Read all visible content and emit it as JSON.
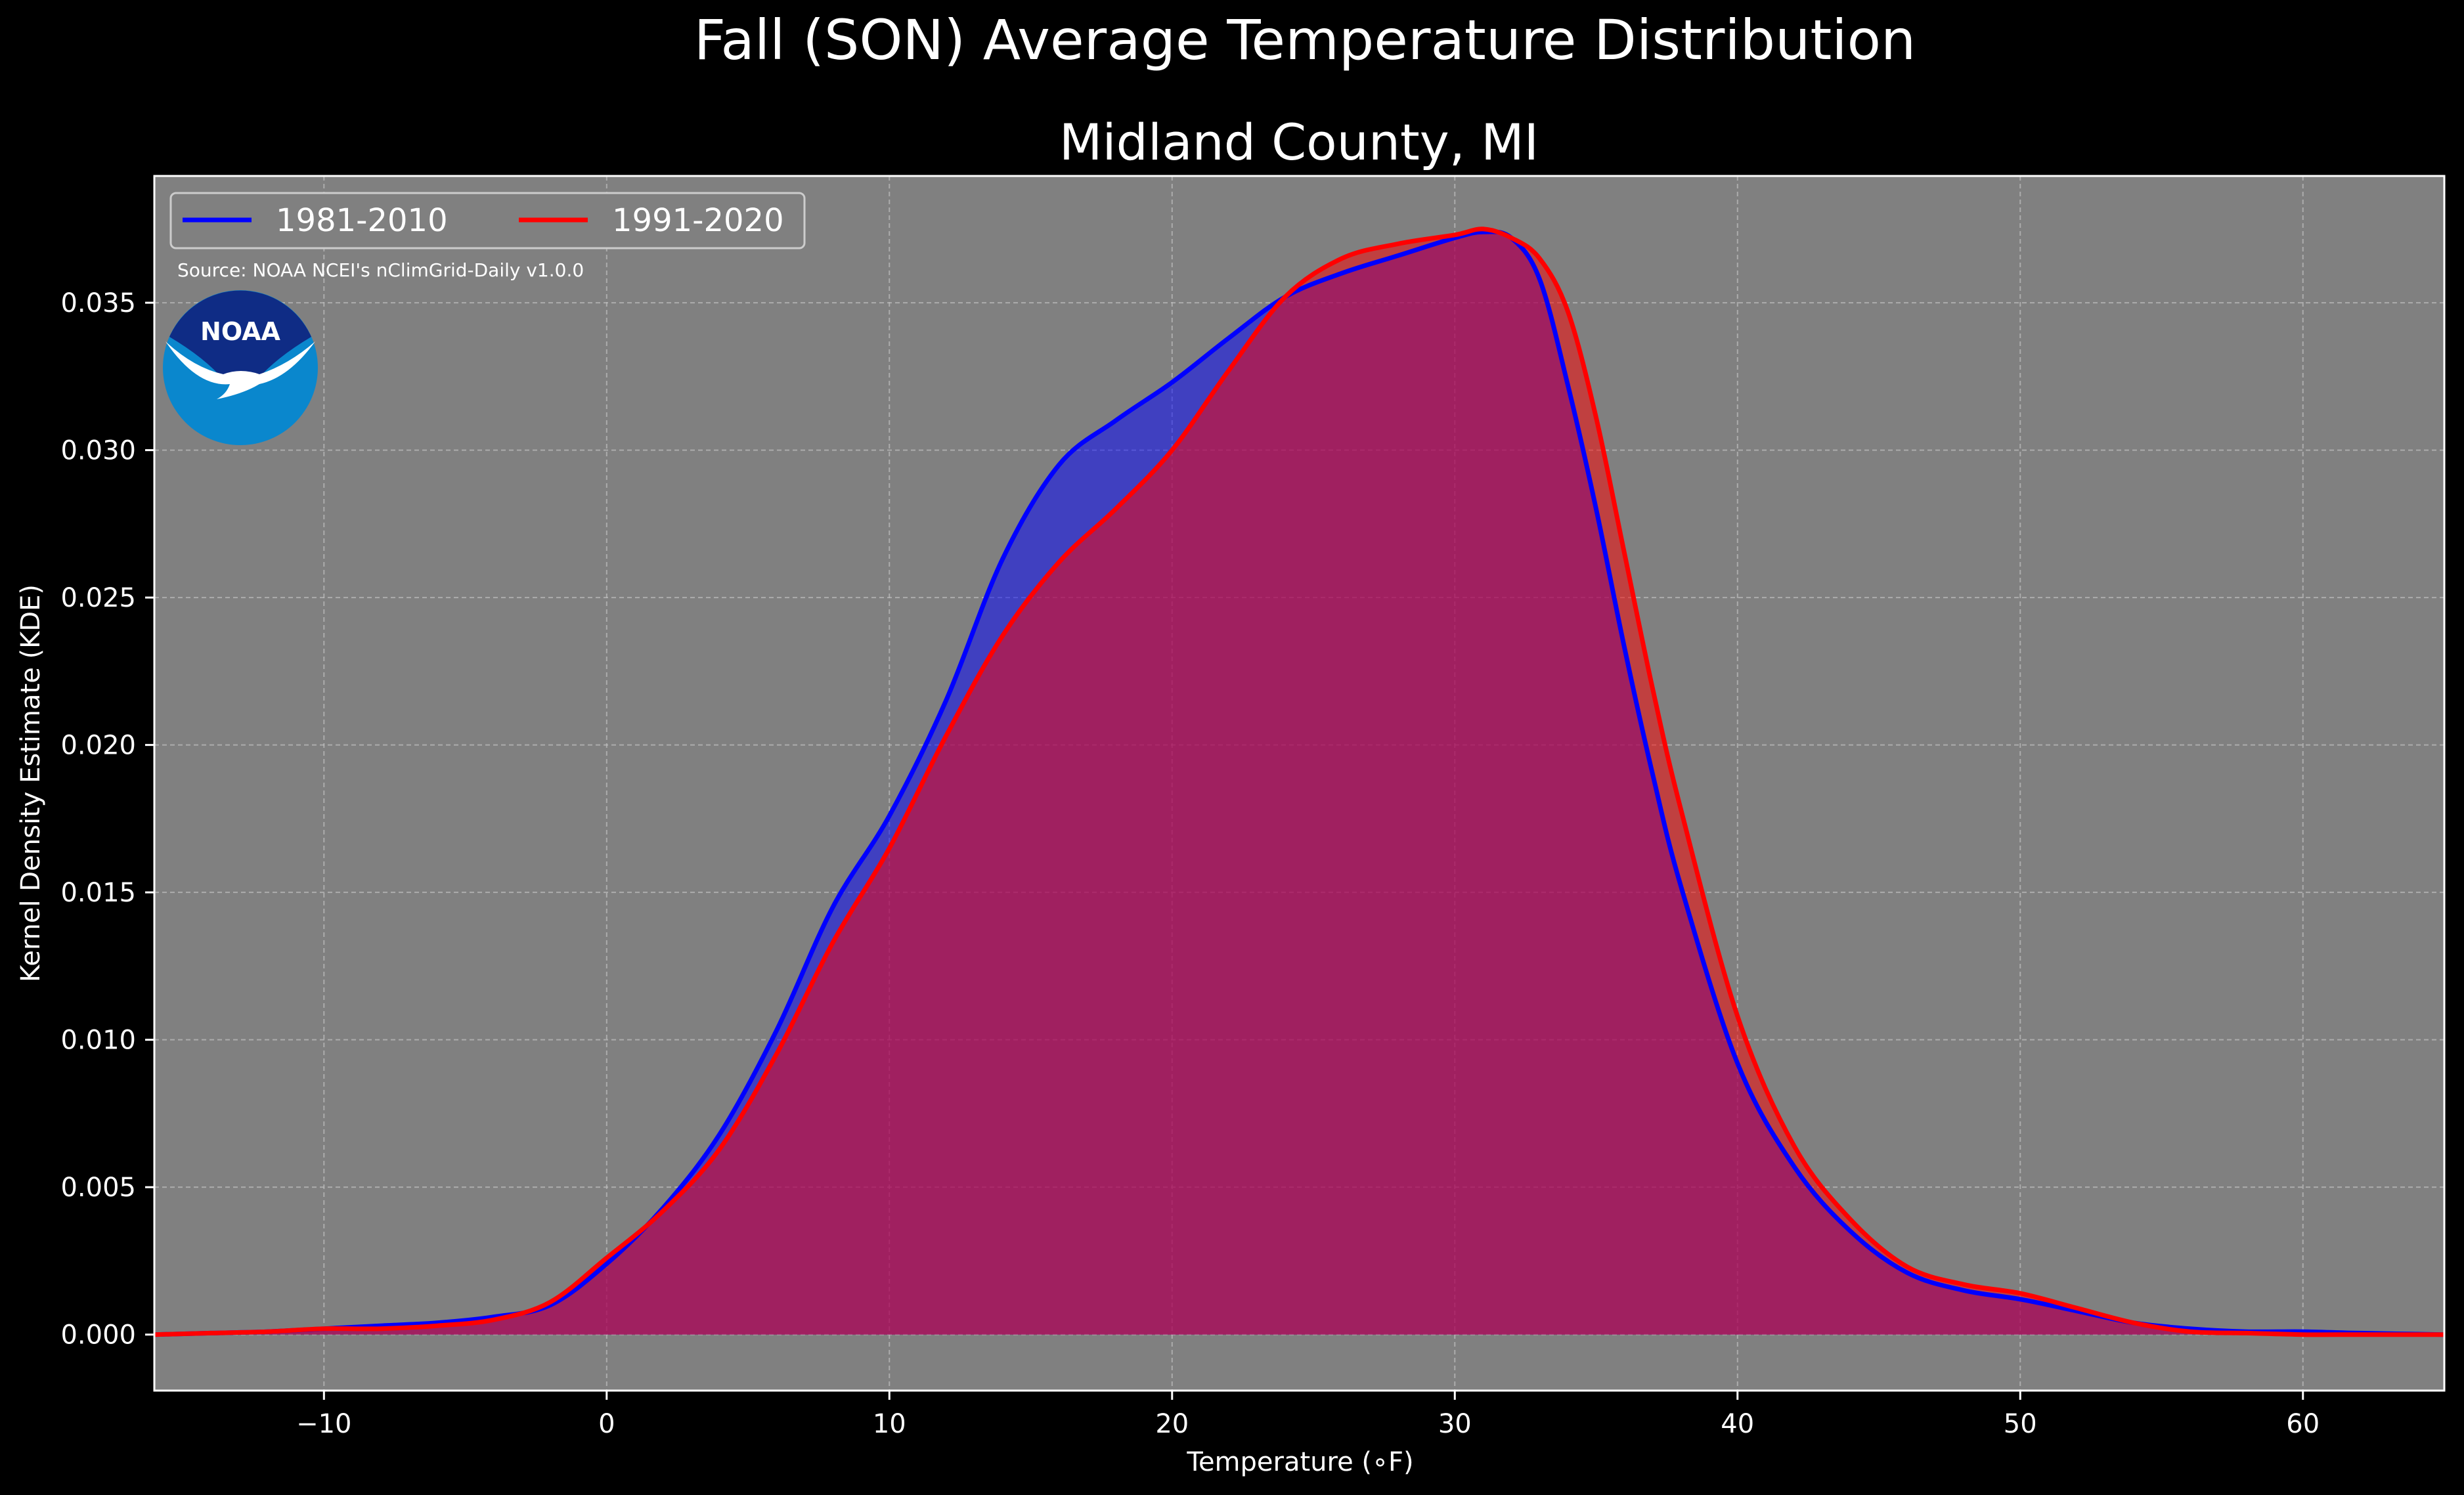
{
  "chart_data": {
    "type": "area",
    "suptitle": "Fall (SON) Average Temperature Distribution",
    "title": "Midland County, MI",
    "xlabel": "Temperature ($^\\circ$F)",
    "xlabel_display": "Temperature (∘F)",
    "ylabel": "Kernel Density Estimate (KDE)",
    "xlim": [
      -16,
      65
    ],
    "ylim": [
      -0.0019,
      0.0393
    ],
    "xticks": [
      -10,
      0,
      10,
      20,
      30,
      40,
      50,
      60
    ],
    "xtick_labels": [
      "−10",
      "0",
      "10",
      "20",
      "30",
      "40",
      "50",
      "60"
    ],
    "yticks": [
      0.0,
      0.005,
      0.01,
      0.015,
      0.02,
      0.025,
      0.03,
      0.035
    ],
    "ytick_labels": [
      "0.000",
      "0.005",
      "0.010",
      "0.015",
      "0.020",
      "0.025",
      "0.030",
      "0.035"
    ],
    "grid": true,
    "legend_position": "top-left",
    "annotation": "Source: NOAA NCEI's nClimGrid-Daily v1.0.0",
    "logo_text": "NOAA",
    "colors": {
      "figure_bg": "#000000",
      "plot_bg": "#808080",
      "grid": "#bfbfbf",
      "spine": "#ffffff",
      "logo_outer": "#0a87cd",
      "logo_inner": "#0f2c85"
    },
    "series": [
      {
        "name": "1981-2010",
        "color": "#0000ff",
        "fill_color": "#0000ff",
        "fill_opacity": 0.5,
        "x": [
          -16,
          -14,
          -12,
          -10,
          -8,
          -6,
          -4,
          -2,
          0,
          2,
          4,
          6,
          8,
          10,
          12,
          14,
          16,
          18,
          20,
          22,
          24,
          26,
          28,
          30,
          31,
          32,
          33,
          34,
          35,
          36,
          37,
          38,
          40,
          42,
          44,
          46,
          48,
          50,
          52,
          54,
          56,
          58,
          60,
          62,
          65
        ],
        "values": [
          0.0,
          5e-05,
          0.0001,
          0.0002,
          0.0003,
          0.0004,
          0.0006,
          0.001,
          0.0024,
          0.0043,
          0.0068,
          0.0103,
          0.0145,
          0.0176,
          0.0215,
          0.0263,
          0.0295,
          0.031,
          0.0323,
          0.0338,
          0.0352,
          0.036,
          0.0366,
          0.0372,
          0.0374,
          0.0372,
          0.0358,
          0.0322,
          0.028,
          0.0233,
          0.019,
          0.0152,
          0.0092,
          0.0057,
          0.0035,
          0.0021,
          0.0015,
          0.0012,
          0.0008,
          0.0004,
          0.0002,
          0.0001,
          0.0001,
          5e-05,
          0.0
        ]
      },
      {
        "name": "1991-2020",
        "color": "#ff0000",
        "fill_color": "#ff0000",
        "fill_opacity": 0.5,
        "x": [
          -16,
          -14,
          -12,
          -10,
          -8,
          -6,
          -4,
          -2,
          0,
          2,
          4,
          6,
          8,
          10,
          12,
          14,
          16,
          18,
          20,
          22,
          24,
          26,
          28,
          30,
          31,
          32,
          33,
          34,
          35,
          36,
          37,
          38,
          40,
          42,
          44,
          46,
          48,
          50,
          52,
          54,
          56,
          58,
          60,
          62,
          65
        ],
        "values": [
          0.0,
          5e-05,
          0.0001,
          0.0002,
          0.0002,
          0.0003,
          0.0005,
          0.0011,
          0.0026,
          0.0042,
          0.0063,
          0.0095,
          0.0133,
          0.0165,
          0.0203,
          0.0237,
          0.0262,
          0.028,
          0.03,
          0.0327,
          0.0352,
          0.0365,
          0.037,
          0.0373,
          0.0375,
          0.0372,
          0.0365,
          0.0347,
          0.0311,
          0.0265,
          0.0219,
          0.0178,
          0.0108,
          0.0064,
          0.0039,
          0.0023,
          0.0017,
          0.0014,
          0.0009,
          0.0004,
          0.0001,
          5e-05,
          0.0,
          0.0,
          0.0
        ]
      }
    ]
  }
}
